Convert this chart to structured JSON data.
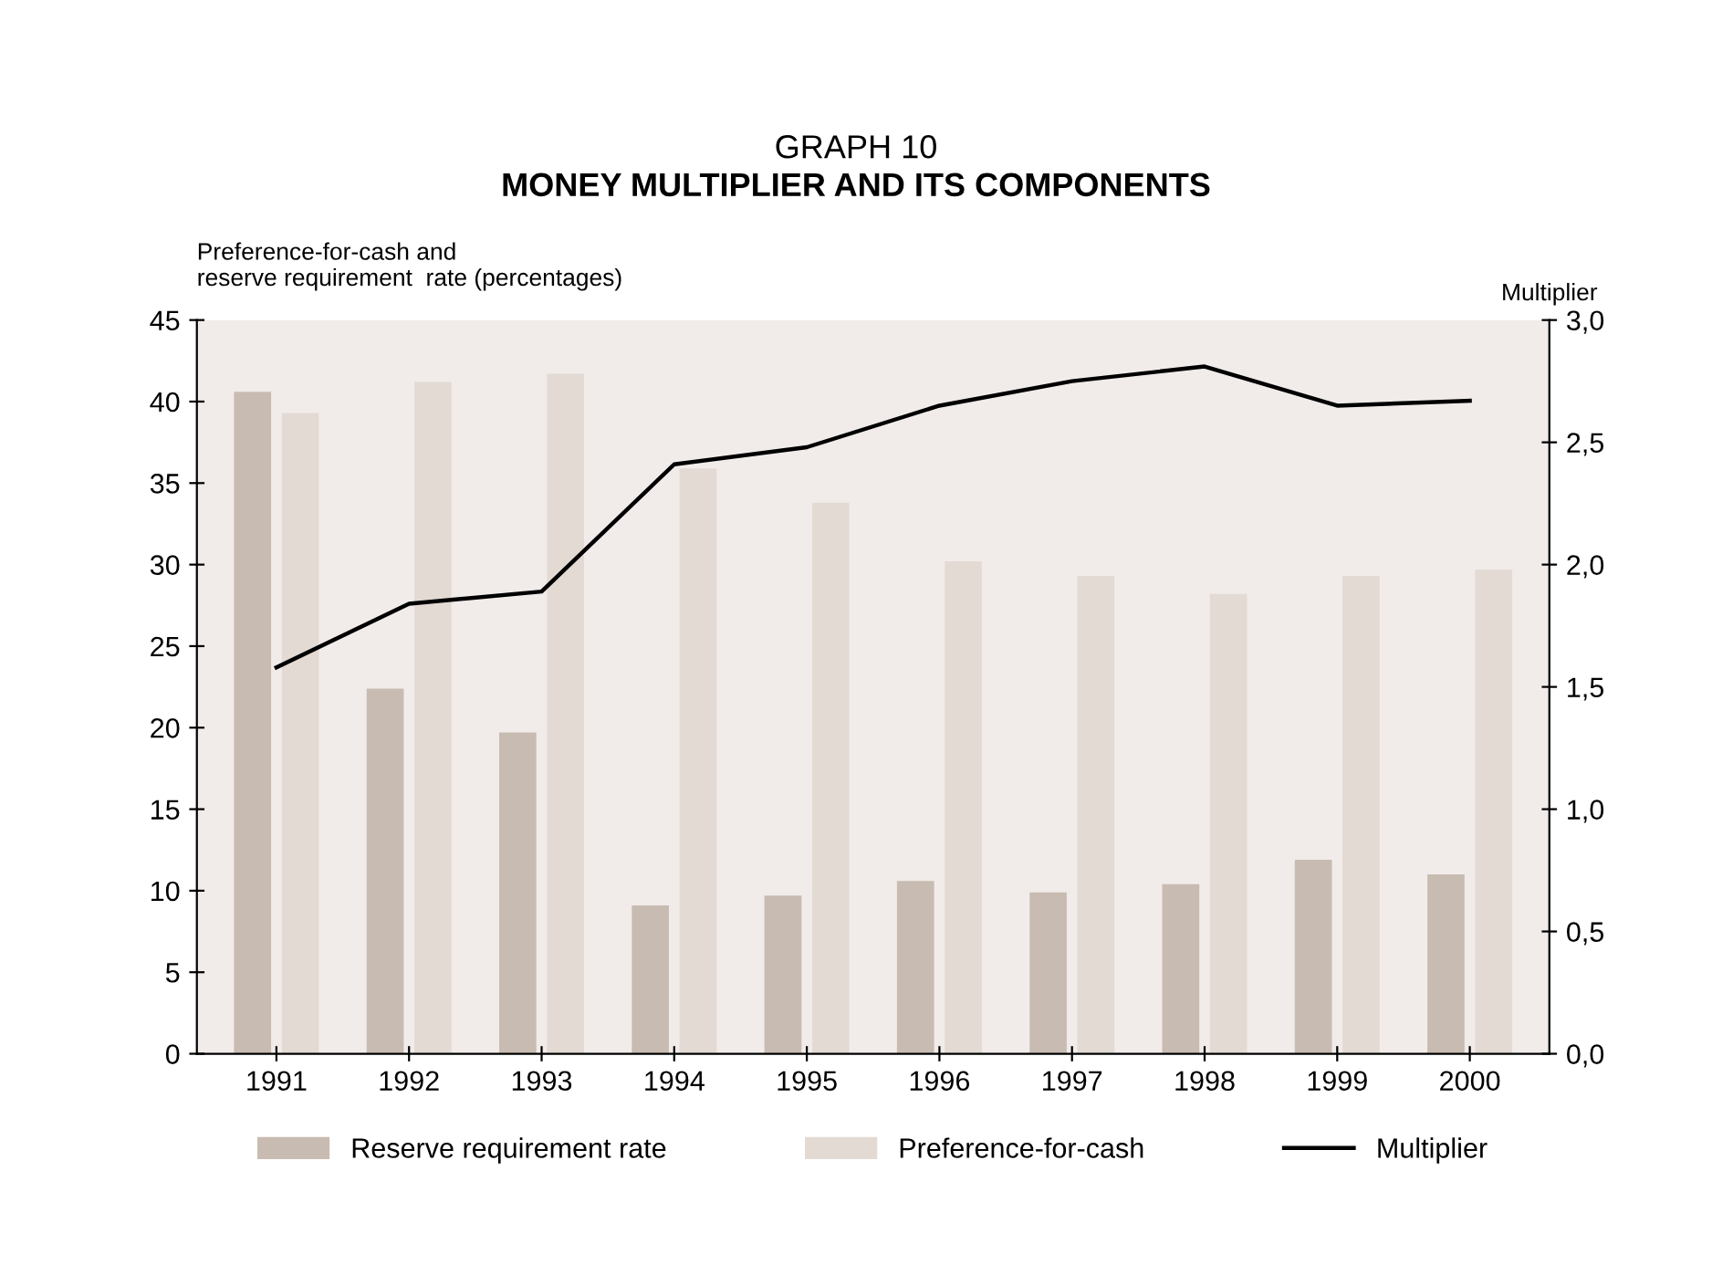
{
  "chart_data": {
    "type": "bar",
    "title": "GRAPH 10",
    "subtitle": "MONEY MULTIPLIER AND ITS COMPONENTS",
    "ylabel": "Preference-for-cash and\nreserve requirement  rate (percentages)",
    "y2label": "Multiplier",
    "categories": [
      "1991",
      "1992",
      "1993",
      "1994",
      "1995",
      "1996",
      "1997",
      "1998",
      "1999",
      "2000"
    ],
    "series": [
      {
        "name": "Reserve requirement rate",
        "color": "#c8bcb2",
        "values": [
          40.6,
          22.4,
          19.7,
          9.1,
          9.7,
          10.6,
          9.9,
          10.4,
          11.9,
          11.0
        ]
      },
      {
        "name": "Preference-for-cash",
        "color": "#e3dad4",
        "values": [
          39.3,
          41.2,
          41.7,
          35.9,
          33.8,
          30.2,
          29.3,
          28.2,
          29.3,
          29.7
        ]
      },
      {
        "name": "Multiplier",
        "type": "line",
        "axis": "y2",
        "color": "#000000",
        "values": [
          1.58,
          1.84,
          1.89,
          2.41,
          2.48,
          2.65,
          2.75,
          2.81,
          2.65,
          2.67
        ]
      }
    ],
    "ylim": [
      0,
      45
    ],
    "yticks": [
      0,
      5,
      10,
      15,
      20,
      25,
      30,
      35,
      40,
      45
    ],
    "y2lim": [
      0,
      3
    ],
    "y2ticks": [
      {
        "value": 0,
        "label": "0,0"
      },
      {
        "value": 0.5,
        "label": "0,5"
      },
      {
        "value": 1,
        "label": "1,0"
      },
      {
        "value": 1.5,
        "label": "1,5"
      },
      {
        "value": 2,
        "label": "2,0"
      },
      {
        "value": 2.5,
        "label": "2,5"
      },
      {
        "value": 3,
        "label": "3,0"
      }
    ],
    "legend": "bottom",
    "grid": false
  }
}
